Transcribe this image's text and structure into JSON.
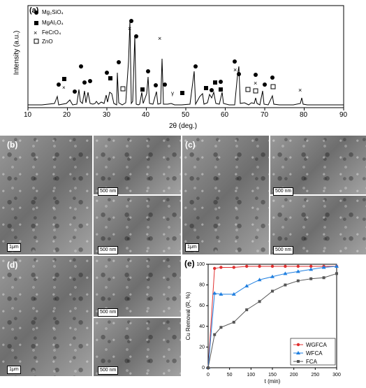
{
  "panel_a": {
    "label": "(a)",
    "ylabel": "Intensity (a.u.)",
    "xlabel": "2θ (deg.)",
    "xticks": [
      "10",
      "20",
      "30",
      "40",
      "50",
      "60",
      "70",
      "80",
      "90"
    ],
    "legend": [
      "Mg₂SiO₄",
      "MgAl₂O₄",
      "FeCrO₄",
      "ZnO"
    ]
  },
  "panel_labels": {
    "b": "(b)",
    "c": "(c)",
    "d": "(d)",
    "e": "(e)"
  },
  "scales": {
    "um": "1μm",
    "nm": "500 nm"
  },
  "chart_data": {
    "type": "line",
    "xlabel": "t (min)",
    "ylabel": "Cu Removal (R, %)",
    "xlim": [
      0,
      300
    ],
    "ylim": [
      0,
      100
    ],
    "xticks": [
      "0",
      "50",
      "100",
      "150",
      "200",
      "250",
      "300"
    ],
    "yticks": [
      "0",
      "20",
      "40",
      "60",
      "80",
      "100"
    ],
    "legend_position": "bottom-right",
    "x": [
      0,
      15,
      30,
      60,
      90,
      120,
      150,
      180,
      210,
      240,
      270,
      300
    ],
    "series": [
      {
        "name": "WGFCA",
        "color": "#e03030",
        "marker": "circle",
        "values": [
          0,
          96,
          97,
          97,
          98,
          98,
          98,
          98,
          98,
          98,
          98,
          98
        ]
      },
      {
        "name": "WFCA",
        "color": "#1f7fe0",
        "marker": "triangle",
        "values": [
          0,
          72,
          71,
          71,
          79,
          85,
          88,
          91,
          93,
          95,
          97,
          98
        ]
      },
      {
        "name": "FCA",
        "color": "#555555",
        "marker": "square",
        "values": [
          0,
          32,
          39,
          44,
          56,
          64,
          74,
          80,
          84,
          86,
          87,
          91
        ]
      }
    ]
  }
}
